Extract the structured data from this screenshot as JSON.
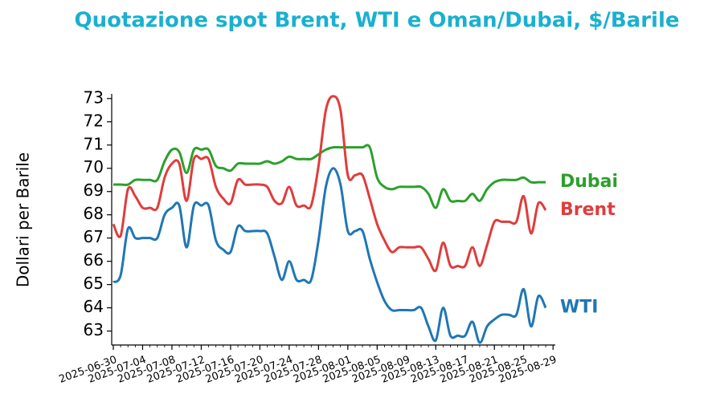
{
  "chart_data": {
    "type": "line",
    "title": "Quotazione spot Brent, WTI e Oman/Dubai, $/Barile",
    "y_label": "Dollari per Barile",
    "x": [
      "2025-06-30",
      "2025-07-01",
      "2025-07-02",
      "2025-07-03",
      "2025-07-04",
      "2025-07-05",
      "2025-07-06",
      "2025-07-07",
      "2025-07-08",
      "2025-07-09",
      "2025-07-10",
      "2025-07-11",
      "2025-07-12",
      "2025-07-13",
      "2025-07-14",
      "2025-07-15",
      "2025-07-16",
      "2025-07-17",
      "2025-07-18",
      "2025-07-19",
      "2025-07-20",
      "2025-07-21",
      "2025-07-22",
      "2025-07-23",
      "2025-07-24",
      "2025-07-25",
      "2025-07-26",
      "2025-07-27",
      "2025-07-28",
      "2025-07-29",
      "2025-07-30",
      "2025-07-31",
      "2025-08-01",
      "2025-08-02",
      "2025-08-03",
      "2025-08-04",
      "2025-08-05",
      "2025-08-06",
      "2025-08-07",
      "2025-08-08",
      "2025-08-09",
      "2025-08-10",
      "2025-08-11",
      "2025-08-12",
      "2025-08-13",
      "2025-08-14",
      "2025-08-15",
      "2025-08-16",
      "2025-08-17",
      "2025-08-18",
      "2025-08-19",
      "2025-08-20",
      "2025-08-21",
      "2025-08-22",
      "2025-08-23",
      "2025-08-24",
      "2025-08-25",
      "2025-08-26",
      "2025-08-27",
      "2025-08-28"
    ],
    "series": [
      {
        "name": "Dubai",
        "color": "#2ca02c",
        "values": [
          69.3,
          69.3,
          69.3,
          69.5,
          69.5,
          69.5,
          69.5,
          70.3,
          70.8,
          70.7,
          69.8,
          70.8,
          70.8,
          70.8,
          70.1,
          70.0,
          69.9,
          70.2,
          70.2,
          70.2,
          70.2,
          70.3,
          70.2,
          70.3,
          70.5,
          70.4,
          70.4,
          70.4,
          70.6,
          70.8,
          70.9,
          70.9,
          70.9,
          70.9,
          70.9,
          70.9,
          69.6,
          69.2,
          69.1,
          69.2,
          69.2,
          69.2,
          69.2,
          68.9,
          68.3,
          69.1,
          68.6,
          68.6,
          68.6,
          68.9,
          68.6,
          69.1,
          69.4,
          69.5,
          69.5,
          69.5,
          69.6,
          69.4,
          69.4,
          69.4
        ]
      },
      {
        "name": "Brent",
        "color": "#e03c3c",
        "values": [
          67.6,
          67.1,
          69.1,
          68.8,
          68.3,
          68.3,
          68.3,
          69.6,
          70.2,
          70.2,
          68.6,
          70.4,
          70.4,
          70.4,
          69.2,
          68.7,
          68.5,
          69.5,
          69.3,
          69.3,
          69.3,
          69.2,
          68.6,
          68.5,
          69.2,
          68.4,
          68.4,
          68.4,
          70.1,
          72.5,
          73.1,
          72.5,
          69.7,
          69.7,
          69.7,
          68.7,
          67.6,
          66.9,
          66.4,
          66.6,
          66.6,
          66.6,
          66.6,
          66.1,
          65.6,
          66.8,
          65.8,
          65.8,
          65.8,
          66.6,
          65.8,
          66.7,
          67.7,
          67.7,
          67.7,
          67.7,
          68.8,
          67.2,
          68.5,
          68.2
        ]
      },
      {
        "name": "WTI",
        "color": "#1f77b4",
        "values": [
          65.1,
          65.4,
          67.4,
          67.0,
          67.0,
          67.0,
          67.0,
          68.0,
          68.3,
          68.4,
          66.6,
          68.4,
          68.4,
          68.4,
          66.9,
          66.5,
          66.4,
          67.5,
          67.3,
          67.3,
          67.3,
          67.2,
          66.2,
          65.2,
          66.0,
          65.2,
          65.2,
          65.2,
          66.9,
          69.2,
          70.0,
          69.3,
          67.3,
          67.3,
          67.3,
          66.1,
          65.1,
          64.3,
          63.9,
          63.9,
          63.9,
          63.9,
          64.0,
          63.2,
          62.6,
          64.0,
          62.8,
          62.8,
          62.8,
          63.4,
          62.5,
          63.2,
          63.5,
          63.7,
          63.7,
          63.7,
          64.8,
          63.2,
          64.5,
          64.0
        ]
      }
    ],
    "xticks": [
      "2025-06-30",
      "2025-07-04",
      "2025-07-08",
      "2025-07-12",
      "2025-07-16",
      "2025-07-20",
      "2025-07-24",
      "2025-07-28",
      "2025-08-01",
      "2025-08-05",
      "2025-08-09",
      "2025-08-13",
      "2025-08-17",
      "2025-08-21",
      "2025-08-25",
      "2025-08-29"
    ],
    "ylim": [
      62.4,
      73.2
    ],
    "yticks": [
      63,
      64,
      65,
      66,
      67,
      68,
      69,
      70,
      71,
      72,
      73
    ]
  }
}
